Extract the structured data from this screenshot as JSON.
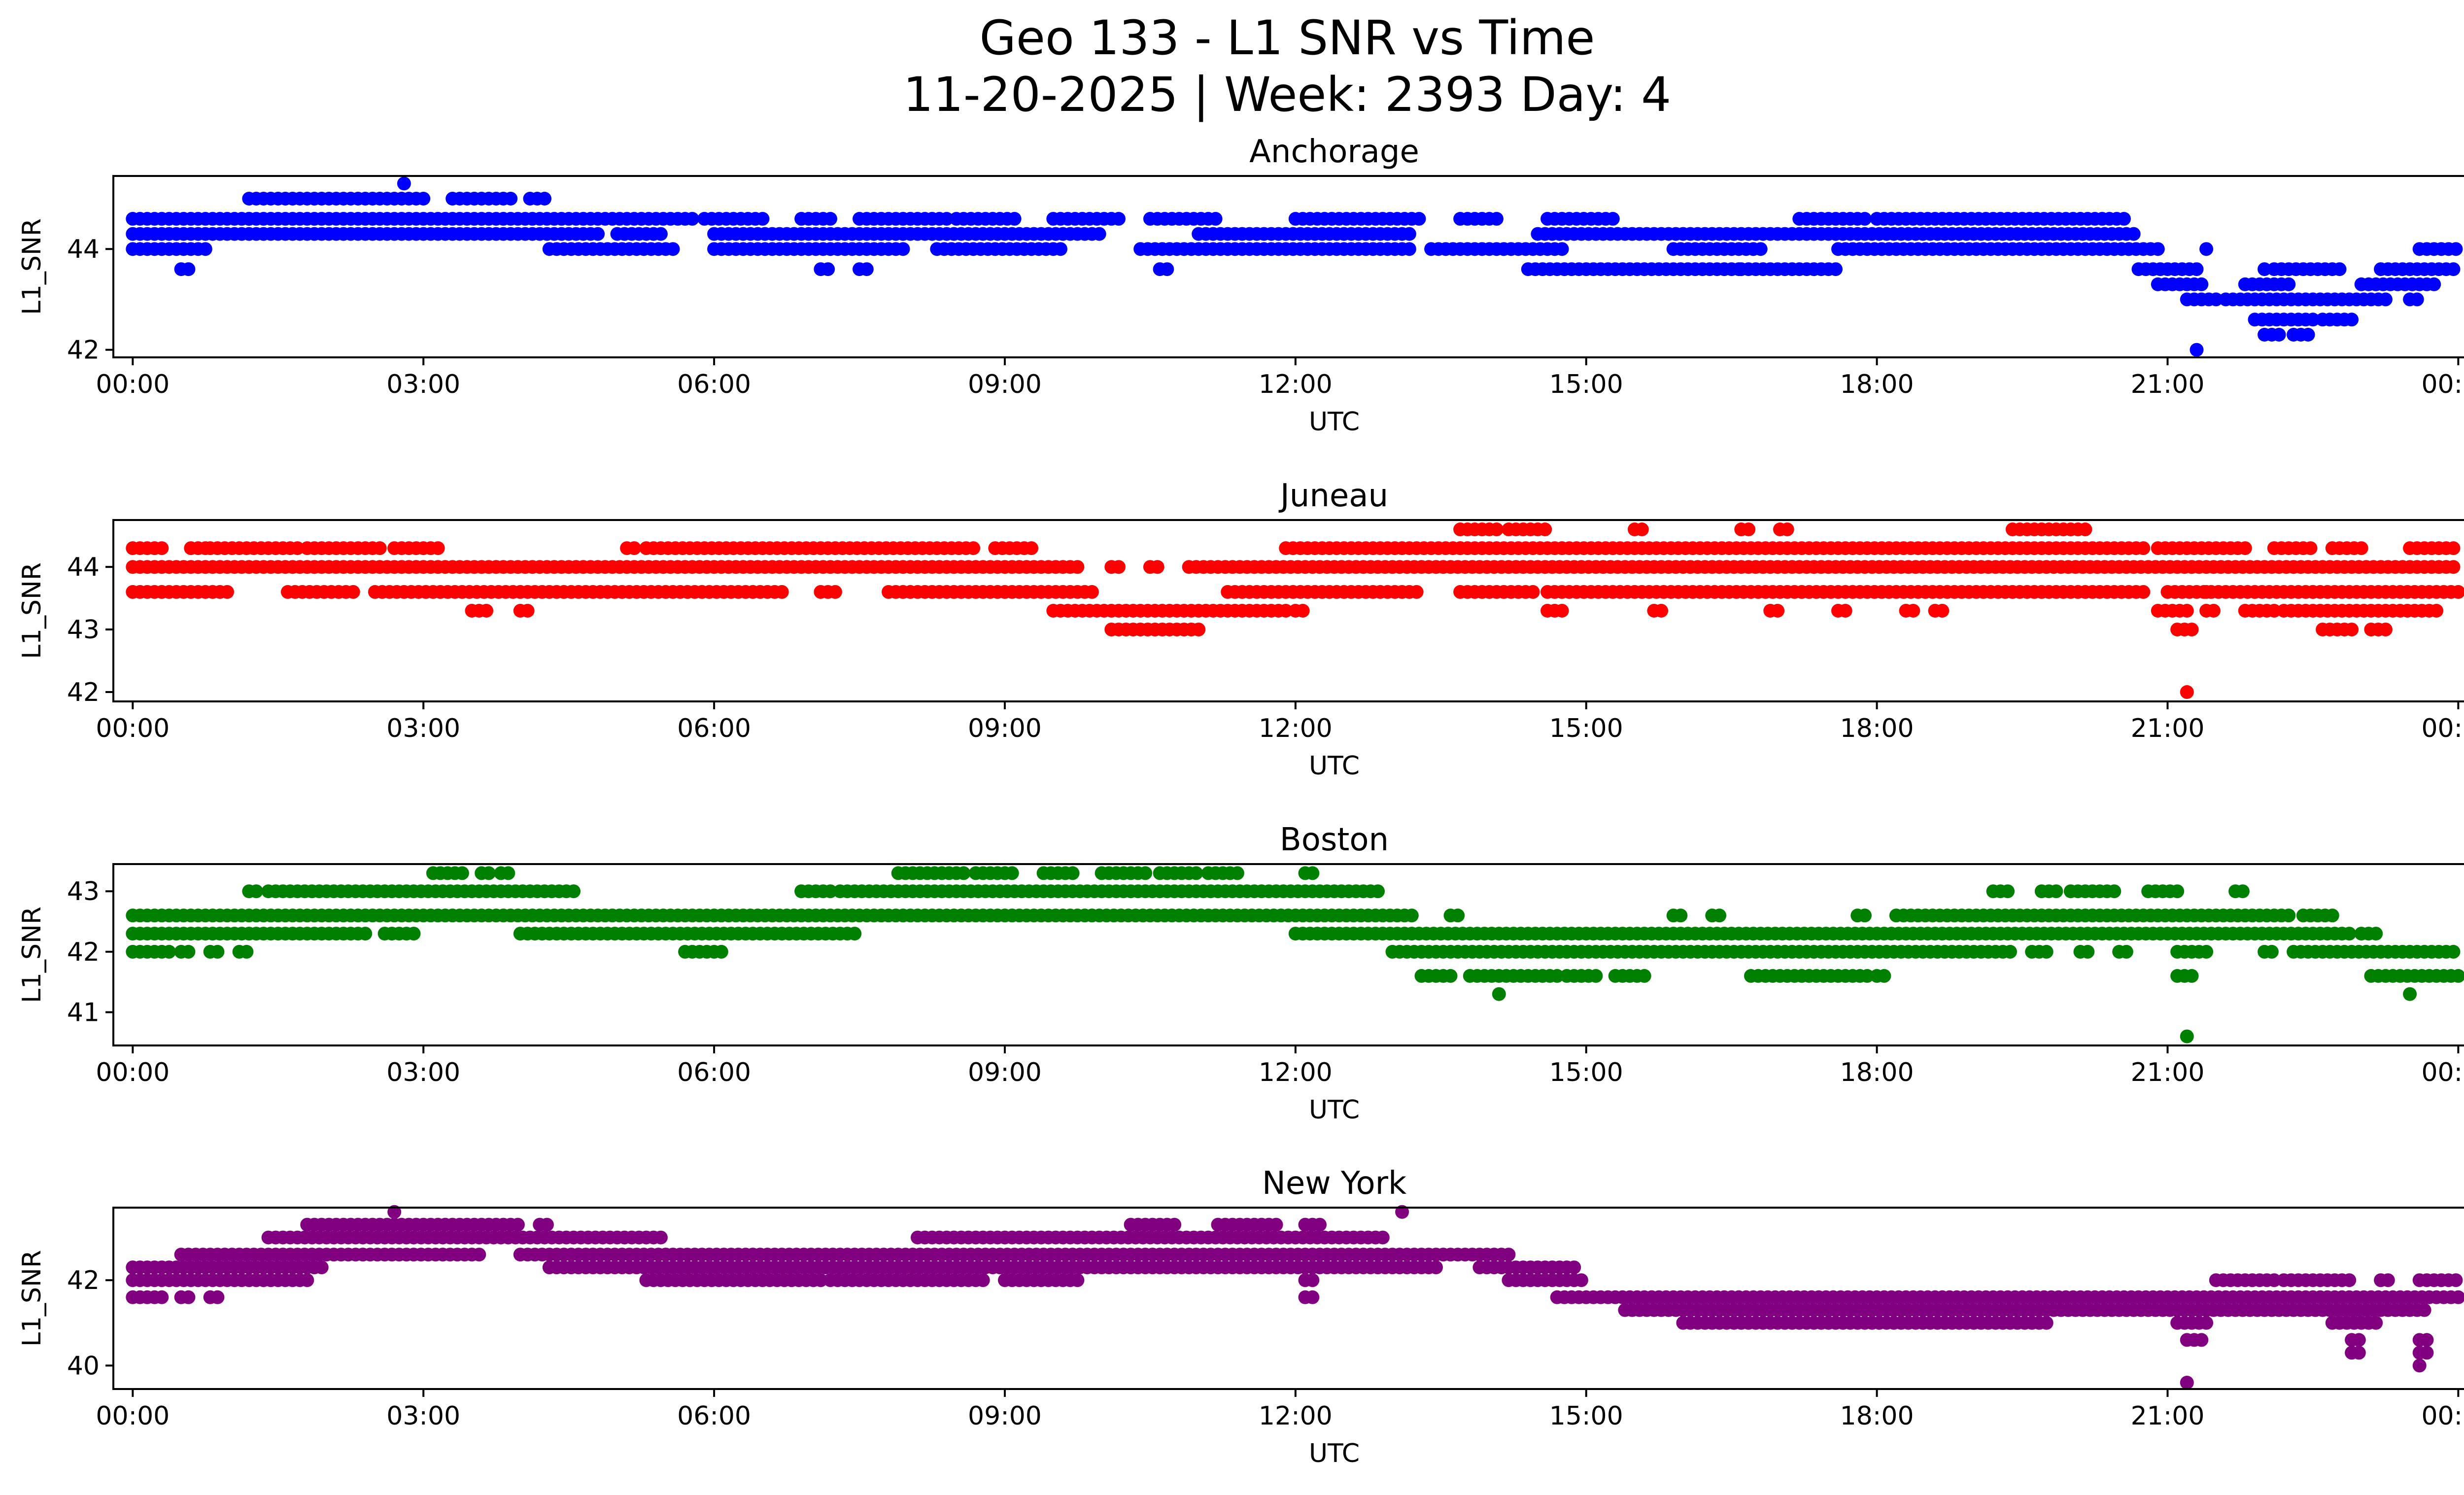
{
  "figure": {
    "title_line1": "Geo 133 - L1 SNR vs Time",
    "title_line2": "11-20-2025 | Week: 2393 Day: 4"
  },
  "chart_data": [
    {
      "type": "scatter",
      "title": "Anchorage",
      "xlabel": "UTC",
      "ylabel": "L1_SNR",
      "color": "#0000ff",
      "xlim": [
        -0.2,
        25.0
      ],
      "ylim": [
        41.85,
        45.45
      ],
      "xticks": [
        0,
        3,
        6,
        9,
        12,
        15,
        18,
        21,
        24
      ],
      "xtick_labels": [
        "00:00",
        "03:00",
        "06:00",
        "09:00",
        "12:00",
        "15:00",
        "18:00",
        "21:00",
        "00:00"
      ],
      "yticks": [
        42,
        44
      ],
      "bands": [
        {
          "y": 45.0,
          "ranges": [
            [
              1.2,
              3.0
            ],
            [
              3.3,
              3.9
            ],
            [
              4.1,
              4.3
            ]
          ]
        },
        {
          "y": 44.6,
          "ranges": [
            [
              0.0,
              1.2
            ],
            [
              1.2,
              5.8
            ],
            [
              5.9,
              6.5
            ],
            [
              6.9,
              7.2
            ],
            [
              7.5,
              8.4
            ],
            [
              8.5,
              9.1
            ],
            [
              9.5,
              10.2
            ],
            [
              10.5,
              11.2
            ],
            [
              12.0,
              13.3
            ],
            [
              13.7,
              14.1
            ],
            [
              14.6,
              15.3
            ],
            [
              17.2,
              17.9
            ],
            [
              18.0,
              20.6
            ]
          ]
        },
        {
          "y": 44.3,
          "ranges": [
            [
              0.0,
              4.8
            ],
            [
              5.0,
              5.5
            ],
            [
              6.0,
              10.0
            ],
            [
              11.0,
              13.2
            ],
            [
              14.5,
              20.7
            ]
          ]
        },
        {
          "y": 44.0,
          "ranges": [
            [
              0.0,
              0.8
            ],
            [
              4.3,
              5.6
            ],
            [
              6.0,
              8.0
            ],
            [
              8.3,
              9.6
            ],
            [
              10.4,
              13.2
            ],
            [
              13.4,
              14.8
            ],
            [
              15.9,
              16.8
            ],
            [
              17.6,
              20.6
            ],
            [
              20.6,
              20.9
            ],
            [
              23.6,
              24.0
            ]
          ]
        },
        {
          "y": 43.6,
          "ranges": [
            [
              0.5,
              0.6
            ],
            [
              7.1,
              7.2
            ],
            [
              7.5,
              7.6
            ],
            [
              10.6,
              10.7
            ],
            [
              14.4,
              16.6
            ],
            [
              16.6,
              17.6
            ],
            [
              20.7,
              21.3
            ],
            [
              22.1,
              22.8
            ],
            [
              23.2,
              24.0
            ]
          ]
        },
        {
          "y": 43.3,
          "ranges": [
            [
              20.9,
              21.4
            ],
            [
              21.8,
              22.3
            ],
            [
              23.0,
              23.8
            ]
          ]
        },
        {
          "y": 43.0,
          "ranges": [
            [
              21.2,
              21.5
            ],
            [
              21.6,
              23.3
            ],
            [
              23.5,
              23.6
            ]
          ]
        },
        {
          "y": 42.6,
          "ranges": [
            [
              21.9,
              22.5
            ],
            [
              22.6,
              22.9
            ]
          ]
        },
        {
          "y": 42.3,
          "ranges": [
            [
              22.0,
              22.2
            ],
            [
              22.3,
              22.5
            ]
          ]
        }
      ],
      "points": [
        [
          2.8,
          45.3
        ],
        [
          21.3,
          42.0
        ],
        [
          21.4,
          44.0
        ],
        [
          22.0,
          43.6
        ]
      ]
    },
    {
      "type": "scatter",
      "title": "Juneau",
      "xlabel": "UTC",
      "ylabel": "L1_SNR",
      "color": "#ff0000",
      "xlim": [
        -0.2,
        25.0
      ],
      "ylim": [
        41.85,
        44.75
      ],
      "xticks": [
        0,
        3,
        6,
        9,
        12,
        15,
        18,
        21,
        24
      ],
      "xtick_labels": [
        "00:00",
        "03:00",
        "06:00",
        "09:00",
        "12:00",
        "15:00",
        "18:00",
        "21:00",
        "00:00"
      ],
      "yticks": [
        42,
        43,
        44
      ],
      "bands": [
        {
          "y": 44.6,
          "ranges": [
            [
              13.7,
              14.1
            ],
            [
              14.2,
              14.6
            ],
            [
              15.5,
              15.6
            ],
            [
              16.6,
              16.7
            ],
            [
              17.0,
              17.1
            ],
            [
              19.4,
              20.2
            ]
          ]
        },
        {
          "y": 44.3,
          "ranges": [
            [
              0.0,
              0.3
            ],
            [
              0.6,
              0.8
            ],
            [
              0.8,
              1.7
            ],
            [
              1.8,
              2.6
            ],
            [
              2.7,
              3.2
            ],
            [
              5.1,
              5.2
            ],
            [
              5.3,
              8.7
            ],
            [
              8.9,
              9.3
            ],
            [
              11.9,
              13.7
            ],
            [
              13.7,
              20.8
            ],
            [
              20.9,
              21.8
            ],
            [
              22.1,
              22.5
            ],
            [
              22.7,
              23.0
            ],
            [
              23.5,
              24.0
            ]
          ]
        },
        {
          "y": 44.0,
          "ranges": [
            [
              0.0,
              9.8
            ],
            [
              10.1,
              10.2
            ],
            [
              10.5,
              10.6
            ],
            [
              10.9,
              24.0
            ]
          ]
        },
        {
          "y": 43.6,
          "ranges": [
            [
              0.0,
              1.0
            ],
            [
              1.6,
              2.3
            ],
            [
              2.5,
              6.7
            ],
            [
              7.1,
              7.3
            ],
            [
              7.8,
              9.9
            ],
            [
              11.3,
              13.3
            ],
            [
              13.7,
              14.5
            ],
            [
              14.6,
              20.8
            ],
            [
              21.0,
              24.0
            ]
          ]
        },
        {
          "y": 43.3,
          "ranges": [
            [
              3.5,
              3.7
            ],
            [
              4.0,
              4.1
            ],
            [
              9.5,
              11.9
            ],
            [
              12.0,
              12.1
            ],
            [
              14.6,
              14.8
            ],
            [
              15.7,
              15.8
            ],
            [
              16.9,
              17.0
            ],
            [
              17.6,
              17.7
            ],
            [
              18.3,
              18.4
            ],
            [
              18.6,
              18.7
            ],
            [
              20.9,
              21.2
            ],
            [
              21.4,
              21.5
            ],
            [
              21.8,
              22.1
            ],
            [
              22.2,
              23.8
            ]
          ]
        },
        {
          "y": 43.0,
          "ranges": [
            [
              10.1,
              11.0
            ],
            [
              21.1,
              21.3
            ],
            [
              22.6,
              22.9
            ],
            [
              23.1,
              23.3
            ]
          ]
        }
      ],
      "points": [
        [
          21.2,
          42.0
        ],
        [
          21.4,
          43.6
        ],
        [
          22.5,
          43.6
        ]
      ]
    },
    {
      "type": "scatter",
      "title": "Boston",
      "xlabel": "UTC",
      "ylabel": "L1_SNR",
      "color": "#008000",
      "xlim": [
        -0.2,
        25.0
      ],
      "ylim": [
        40.45,
        43.45
      ],
      "xticks": [
        0,
        3,
        6,
        9,
        12,
        15,
        18,
        21,
        24
      ],
      "xtick_labels": [
        "00:00",
        "03:00",
        "06:00",
        "09:00",
        "12:00",
        "15:00",
        "18:00",
        "21:00",
        "00:00"
      ],
      "yticks": [
        41,
        42,
        43
      ],
      "bands": [
        {
          "y": 43.3,
          "ranges": [
            [
              3.1,
              3.4
            ],
            [
              3.6,
              3.7
            ],
            [
              3.8,
              3.9
            ],
            [
              7.9,
              8.6
            ],
            [
              8.7,
              9.1
            ],
            [
              9.4,
              9.7
            ],
            [
              10.0,
              10.5
            ],
            [
              10.6,
              11.0
            ],
            [
              11.1,
              11.4
            ],
            [
              12.1,
              12.2
            ]
          ]
        },
        {
          "y": 43.0,
          "ranges": [
            [
              1.2,
              1.3
            ],
            [
              1.4,
              4.6
            ],
            [
              6.9,
              7.2
            ],
            [
              7.3,
              12.9
            ],
            [
              19.2,
              19.4
            ],
            [
              19.7,
              19.9
            ],
            [
              20.0,
              20.5
            ],
            [
              20.8,
              21.1
            ],
            [
              21.7,
              21.8
            ]
          ]
        },
        {
          "y": 42.6,
          "ranges": [
            [
              0.0,
              13.2
            ],
            [
              13.6,
              13.7
            ],
            [
              15.9,
              16.0
            ],
            [
              16.3,
              16.4
            ],
            [
              17.8,
              17.9
            ],
            [
              18.2,
              22.3
            ],
            [
              22.4,
              22.7
            ]
          ]
        },
        {
          "y": 42.3,
          "ranges": [
            [
              0.0,
              2.4
            ],
            [
              2.6,
              2.9
            ],
            [
              4.0,
              7.5
            ],
            [
              12.0,
              22.9
            ],
            [
              23.0,
              23.2
            ]
          ]
        },
        {
          "y": 42.0,
          "ranges": [
            [
              0.0,
              0.4
            ],
            [
              0.5,
              0.6
            ],
            [
              0.8,
              0.9
            ],
            [
              1.1,
              1.2
            ],
            [
              5.7,
              6.1
            ],
            [
              13.0,
              19.4
            ],
            [
              19.6,
              19.8
            ],
            [
              20.1,
              20.2
            ],
            [
              20.5,
              20.6
            ],
            [
              21.1,
              21.4
            ],
            [
              22.0,
              22.1
            ],
            [
              22.3,
              24.0
            ]
          ]
        },
        {
          "y": 41.6,
          "ranges": [
            [
              13.3,
              13.6
            ],
            [
              13.8,
              14.7
            ],
            [
              14.8,
              15.1
            ],
            [
              15.3,
              15.6
            ],
            [
              16.7,
              17.9
            ],
            [
              18.0,
              18.1
            ],
            [
              21.1,
              21.3
            ],
            [
              23.1,
              24.0
            ]
          ]
        }
      ],
      "points": [
        [
          14.1,
          41.3
        ],
        [
          21.2,
          40.6
        ],
        [
          23.5,
          41.3
        ]
      ]
    },
    {
      "type": "scatter",
      "title": "New York",
      "xlabel": "UTC",
      "ylabel": "L1_SNR",
      "color": "#800080",
      "xlim": [
        -0.2,
        25.0
      ],
      "ylim": [
        39.45,
        43.7
      ],
      "xticks": [
        0,
        3,
        6,
        9,
        12,
        15,
        18,
        21,
        24
      ],
      "xtick_labels": [
        "00:00",
        "03:00",
        "06:00",
        "09:00",
        "12:00",
        "15:00",
        "18:00",
        "21:00",
        "00:00"
      ],
      "yticks": [
        40,
        42
      ],
      "bands": [
        {
          "y": 43.3,
          "ranges": [
            [
              1.8,
              4.0
            ],
            [
              4.2,
              4.3
            ],
            [
              10.3,
              10.8
            ],
            [
              11.2,
              11.8
            ],
            [
              12.1,
              12.3
            ]
          ]
        },
        {
          "y": 43.0,
          "ranges": [
            [
              1.4,
              5.5
            ],
            [
              8.1,
              12.9
            ]
          ]
        },
        {
          "y": 42.6,
          "ranges": [
            [
              0.5,
              3.6
            ],
            [
              4.0,
              5.5
            ],
            [
              5.5,
              14.2
            ]
          ]
        },
        {
          "y": 42.3,
          "ranges": [
            [
              0.0,
              2.0
            ],
            [
              4.3,
              13.5
            ],
            [
              13.9,
              14.9
            ]
          ]
        },
        {
          "y": 42.0,
          "ranges": [
            [
              0.0,
              1.8
            ],
            [
              5.3,
              7.1
            ],
            [
              7.2,
              8.8
            ],
            [
              9.0,
              9.8
            ],
            [
              12.1,
              12.2
            ],
            [
              14.2,
              15.0
            ],
            [
              21.5,
              22.1
            ],
            [
              22.2,
              22.9
            ],
            [
              23.2,
              23.3
            ],
            [
              23.6,
              24.0
            ]
          ]
        },
        {
          "y": 41.6,
          "ranges": [
            [
              0.0,
              0.3
            ],
            [
              0.5,
              0.6
            ],
            [
              0.8,
              0.9
            ],
            [
              12.1,
              12.2
            ],
            [
              14.7,
              24.0
            ]
          ]
        },
        {
          "y": 41.3,
          "ranges": [
            [
              15.4,
              23.7
            ]
          ]
        },
        {
          "y": 41.0,
          "ranges": [
            [
              16.0,
              19.8
            ],
            [
              21.1,
              21.4
            ],
            [
              22.7,
              23.2
            ]
          ]
        },
        {
          "y": 40.6,
          "ranges": [
            [
              21.2,
              21.4
            ],
            [
              22.9,
              23.0
            ],
            [
              23.6,
              23.7
            ]
          ]
        },
        {
          "y": 40.3,
          "ranges": [
            [
              22.9,
              23.0
            ],
            [
              23.6,
              23.7
            ]
          ]
        }
      ],
      "points": [
        [
          2.7,
          43.6
        ],
        [
          13.1,
          43.6
        ],
        [
          21.2,
          39.6
        ],
        [
          23.6,
          40.0
        ]
      ]
    }
  ]
}
